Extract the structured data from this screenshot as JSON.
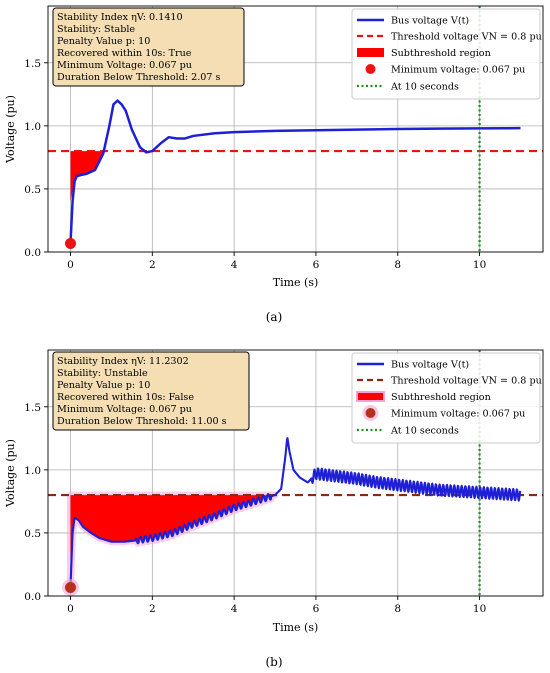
{
  "chart_data": [
    {
      "type": "line",
      "caption": "(a)",
      "xlabel": "Time (s)",
      "ylabel": "Voltage (pu)",
      "xlim": [
        -0.55,
        11.55
      ],
      "ylim": [
        0.0,
        1.95
      ],
      "x_ticks": [
        "0",
        "2",
        "4",
        "6",
        "8",
        "10"
      ],
      "y_ticks": [
        "0.0",
        "0.5",
        "1.0",
        "1.5"
      ],
      "x_tick_values": [
        0,
        2,
        4,
        6,
        8,
        10
      ],
      "y_tick_values": [
        0.0,
        0.5,
        1.0,
        1.5
      ],
      "grid": true,
      "legend_position": "top-right",
      "info_position": "top-left",
      "info_lines": [
        "Stability Index ηV: 0.1410",
        "Stability: Stable",
        "Penalty Value p: 10",
        "Recovered within 10s: True",
        "Minimum Voltage: 0.067 pu",
        "Duration Below Threshold: 2.07 s"
      ],
      "legend": {
        "bus": "Bus voltage V(t)",
        "threshold": "Threshold voltage VN = 0.8 pu",
        "subthreshold": "Subthreshold region",
        "minimum": "Minimum voltage: 0.067 pu",
        "at10": "At 10 seconds"
      },
      "threshold": 0.8,
      "vline_x": 10,
      "minimum_point": {
        "x": 0.0,
        "y": 0.067
      },
      "series": [
        {
          "name": "Bus voltage V(t)",
          "color": "#1f1fd6",
          "x": [
            0.0,
            0.05,
            0.1,
            0.15,
            0.25,
            0.4,
            0.6,
            0.8,
            0.95,
            1.05,
            1.15,
            1.25,
            1.35,
            1.5,
            1.7,
            1.85,
            2.0,
            2.2,
            2.4,
            2.6,
            2.8,
            3.0,
            3.5,
            4.0,
            5.0,
            6.0,
            7.0,
            8.0,
            9.0,
            10.0,
            11.0
          ],
          "y": [
            0.07,
            0.4,
            0.56,
            0.6,
            0.61,
            0.62,
            0.65,
            0.78,
            1.0,
            1.17,
            1.2,
            1.17,
            1.12,
            0.97,
            0.83,
            0.79,
            0.8,
            0.86,
            0.91,
            0.9,
            0.9,
            0.92,
            0.94,
            0.95,
            0.96,
            0.965,
            0.97,
            0.975,
            0.978,
            0.98,
            0.982
          ]
        }
      ],
      "subthreshold_band": [
        [
          0.0,
          0.4
        ],
        [
          0.1,
          0.56
        ],
        [
          0.15,
          0.6
        ],
        [
          0.25,
          0.61
        ],
        [
          0.4,
          0.62
        ],
        [
          0.6,
          0.65
        ],
        [
          0.8,
          0.8
        ]
      ],
      "colors": {
        "bus": "#1f1fd6",
        "threshold": "#ee1111",
        "subthreshold": "#ff0000",
        "minimum": "#ee1111",
        "vline": "#1f8f1f",
        "info_bg": "#f5deb3"
      }
    },
    {
      "type": "line",
      "caption": "(b)",
      "xlabel": "Time (s)",
      "ylabel": "Voltage (pu)",
      "xlim": [
        -0.55,
        11.55
      ],
      "ylim": [
        0.0,
        1.95
      ],
      "x_ticks": [
        "0",
        "2",
        "4",
        "6",
        "8",
        "10"
      ],
      "y_ticks": [
        "0.0",
        "0.5",
        "1.0",
        "1.5"
      ],
      "x_tick_values": [
        0,
        2,
        4,
        6,
        8,
        10
      ],
      "y_tick_values": [
        0.0,
        0.5,
        1.0,
        1.5
      ],
      "grid": true,
      "legend_position": "top-right",
      "info_position": "top-left",
      "info_lines": [
        "Stability Index ηV: 11.2302",
        "Stability: Unstable",
        "Penalty Value p: 10",
        "Recovered within 10s: False",
        "Minimum Voltage: 0.067 pu",
        "Duration Below Threshold: 11.00 s"
      ],
      "legend": {
        "bus": "Bus voltage V(t)",
        "threshold": "Threshold voltage VN = 0.8 pu",
        "subthreshold": "Subthreshold region",
        "minimum": "Minimum voltage: 0.067 pu",
        "at10": "At 10 seconds"
      },
      "threshold": 0.8,
      "vline_x": 10,
      "minimum_point": {
        "x": 0.0,
        "y": 0.067
      },
      "series": [
        {
          "name": "Bus voltage V(t)",
          "color": "#1f1fd6",
          "x": [
            0.0,
            0.05,
            0.1,
            0.2,
            0.3,
            0.5,
            0.7,
            1.0,
            1.3,
            1.6,
            2.0,
            2.5,
            3.0,
            3.5,
            4.0,
            4.5,
            5.0,
            5.15,
            5.25,
            5.3,
            5.35,
            5.45,
            5.6,
            5.8,
            6.0,
            6.5,
            7.0,
            7.5,
            8.0,
            8.5,
            9.0,
            9.5,
            10.0,
            10.5,
            11.0
          ],
          "y": [
            0.07,
            0.5,
            0.62,
            0.6,
            0.55,
            0.5,
            0.46,
            0.43,
            0.43,
            0.44,
            0.46,
            0.5,
            0.57,
            0.63,
            0.7,
            0.75,
            0.8,
            0.85,
            1.1,
            1.26,
            1.15,
            1.0,
            0.94,
            0.9,
            0.97,
            0.95,
            0.93,
            0.9,
            0.88,
            0.86,
            0.84,
            0.83,
            0.82,
            0.81,
            0.8
          ]
        }
      ],
      "oscillation": [
        {
          "from": 1.6,
          "to": 4.9,
          "amp": 0.025,
          "period": 0.12
        },
        {
          "from": 5.9,
          "to": 11.0,
          "amp": 0.045,
          "period": 0.09
        }
      ],
      "colors": {
        "bus": "#1f1fd6",
        "threshold": "#8b2a14",
        "subthreshold": "#ff0000",
        "minimum": "#b5321a",
        "vline": "#1f8f1f",
        "info_bg": "#f5deb3",
        "highlight": "#f5a3d8"
      }
    }
  ]
}
